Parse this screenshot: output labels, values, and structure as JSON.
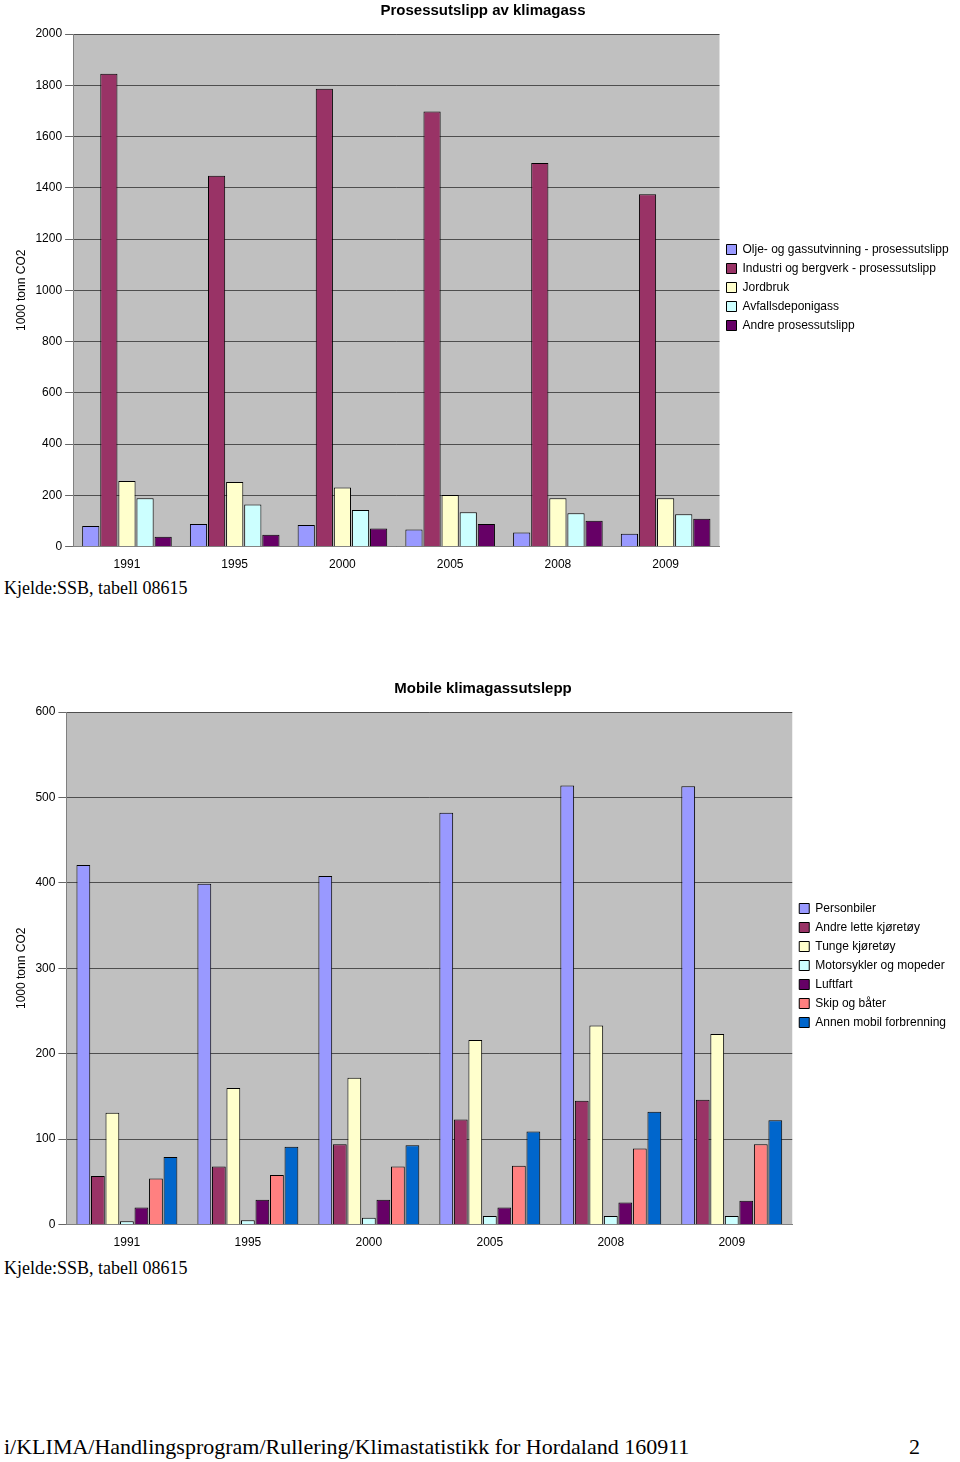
{
  "chart_data": [
    {
      "type": "bar",
      "title": "Prosessutslipp av klimagass",
      "y_label": "1000 tonn CO2",
      "categories": [
        "1991",
        "1995",
        "2000",
        "2005",
        "2008",
        "2009"
      ],
      "series": [
        {
          "name": "Olje- og gassutvinning - prosessutslipp",
          "color": "#9999FF",
          "values": [
            80,
            88,
            84,
            67,
            55,
            50
          ]
        },
        {
          "name": "Industri og bergverk - prosessutslipp",
          "color": "#993366",
          "values": [
            1845,
            1447,
            1786,
            1698,
            1497,
            1375
          ]
        },
        {
          "name": "Jordbruk",
          "color": "#FFFFCC",
          "values": [
            256,
            252,
            231,
            201,
            189,
            189
          ]
        },
        {
          "name": "Avfallsdeponigass",
          "color": "#CCFFFF",
          "values": [
            189,
            164,
            143,
            134,
            130,
            126
          ]
        },
        {
          "name": "Andre prosessutslipp",
          "color": "#660066",
          "values": [
            38,
            46,
            71,
            88,
            101,
            109
          ]
        }
      ],
      "ylim": [
        0,
        2000
      ],
      "yticks": [
        0,
        200,
        400,
        600,
        800,
        1000,
        1200,
        1400,
        1600,
        1800,
        2000
      ],
      "grid": true,
      "legend": "right",
      "source": "Kjelde:SSB, tabell 08615"
    },
    {
      "type": "bar",
      "title": "Mobile klimagassutslepp",
      "y_label": "1000 tonn CO2",
      "categories": [
        "1991",
        "1995",
        "2000",
        "2005",
        "2008",
        "2009"
      ],
      "series": [
        {
          "name": "Personbiler",
          "color": "#9999FF",
          "values": [
            421,
            399,
            408,
            482,
            514,
            513
          ]
        },
        {
          "name": "Andre lette kjøretøy",
          "color": "#993366",
          "values": [
            57,
            68,
            94,
            123,
            145,
            146
          ]
        },
        {
          "name": "Tunge kjøretøy",
          "color": "#FFFFCC",
          "values": [
            131,
            160,
            172,
            216,
            233,
            223
          ]
        },
        {
          "name": "Motorsykler og mopeder",
          "color": "#CCFFFF",
          "values": [
            4,
            5,
            8,
            10,
            10,
            10
          ]
        },
        {
          "name": "Luftfart",
          "color": "#660066",
          "values": [
            20,
            29,
            29,
            20,
            26,
            28
          ]
        },
        {
          "name": "Skip og båter",
          "color": "#FF8080",
          "values": [
            54,
            58,
            68,
            69,
            89,
            94
          ]
        },
        {
          "name": "Annen mobil forbrenning",
          "color": "#0066CC",
          "values": [
            79,
            91,
            93,
            109,
            132,
            122
          ]
        }
      ],
      "ylim": [
        0,
        600
      ],
      "yticks": [
        0,
        100,
        200,
        300,
        400,
        500,
        600
      ],
      "grid": true,
      "legend": "right",
      "source": "Kjelde:SSB, tabell 08615"
    }
  ],
  "footer": {
    "path": "i/KLIMA/Handlingsprogram/Rullering/Klimastatistikk for Hordaland 160911",
    "page": "2"
  }
}
